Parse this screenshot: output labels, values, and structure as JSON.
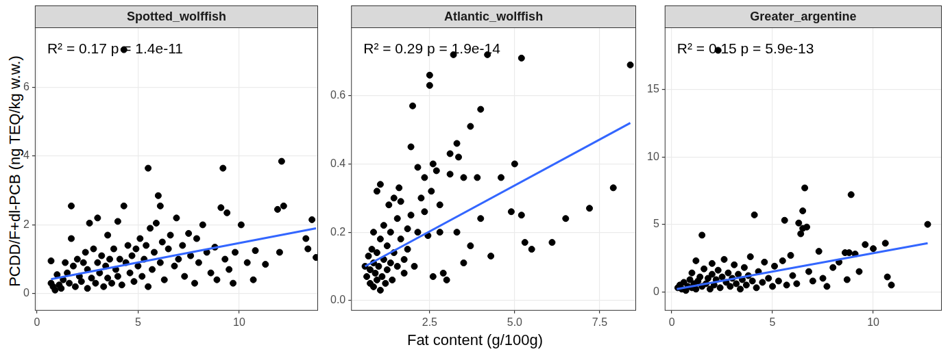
{
  "chart_data": [
    {
      "type": "scatter",
      "title": "Spotted_wolffish",
      "annotation": "R² = 0.17 p = 1.4e-11",
      "ylabel": "PCDD/F+dl-PCB (ng TEQ/kg w.w.)",
      "xlim": [
        -0.1,
        13.9
      ],
      "xticks": [
        0,
        5,
        10
      ],
      "ylim": [
        -0.5,
        7.75
      ],
      "yticks": [
        0,
        2,
        4,
        6
      ],
      "grid": true,
      "series": [
        {
          "type": "scatter",
          "color": "#000000",
          "x": [
            0.7,
            0.7,
            0.8,
            0.9,
            1.0,
            1.1,
            1.2,
            1.3,
            1.4,
            1.5,
            1.6,
            1.7,
            1.7,
            1.8,
            1.9,
            2.0,
            2.1,
            2.2,
            2.3,
            2.4,
            2.5,
            2.5,
            2.6,
            2.7,
            2.8,
            2.9,
            3.0,
            3.0,
            3.1,
            3.2,
            3.3,
            3.4,
            3.5,
            3.5,
            3.6,
            3.7,
            3.8,
            3.9,
            4.0,
            4.0,
            4.1,
            4.2,
            4.3,
            4.3,
            4.4,
            4.5,
            4.6,
            4.7,
            4.8,
            4.9,
            5.0,
            5.1,
            5.2,
            5.3,
            5.4,
            5.5,
            5.5,
            5.6,
            5.7,
            5.8,
            5.9,
            6.0,
            6.1,
            6.1,
            6.2,
            6.3,
            6.5,
            6.6,
            6.8,
            6.9,
            7.0,
            7.2,
            7.3,
            7.5,
            7.6,
            7.8,
            7.9,
            8.0,
            8.2,
            8.4,
            8.6,
            8.8,
            8.9,
            9.1,
            9.2,
            9.3,
            9.4,
            9.5,
            9.7,
            9.8,
            10.1,
            10.4,
            10.7,
            10.8,
            11.3,
            11.9,
            12.0,
            12.1,
            12.2,
            13.3,
            13.4,
            13.6,
            13.8
          ],
          "values": [
            0.95,
            0.3,
            0.2,
            0.1,
            0.55,
            0.25,
            0.15,
            0.4,
            0.9,
            0.6,
            0.3,
            2.55,
            1.6,
            0.8,
            0.2,
            1.0,
            0.5,
            0.35,
            0.9,
            1.2,
            0.15,
            0.7,
            2.05,
            0.45,
            1.3,
            0.3,
            0.9,
            2.2,
            0.6,
            1.1,
            0.2,
            0.8,
            1.7,
            0.45,
            1.0,
            0.3,
            1.3,
            0.7,
            2.1,
            0.5,
            1.0,
            0.25,
            7.1,
            2.55,
            0.9,
            1.4,
            0.6,
            1.1,
            0.35,
            1.3,
            0.8,
            1.6,
            0.5,
            1.0,
            1.4,
            3.65,
            0.2,
            1.9,
            0.7,
            1.2,
            2.05,
            2.85,
            2.55,
            0.9,
            1.5,
            0.4,
            1.3,
            1.7,
            0.8,
            2.2,
            1.0,
            1.4,
            0.5,
            1.75,
            1.1,
            0.3,
            1.6,
            0.9,
            2.0,
            1.2,
            0.6,
            1.35,
            0.4,
            2.5,
            3.65,
            1.0,
            2.35,
            0.7,
            0.3,
            1.2,
            2.0,
            0.9,
            0.4,
            1.25,
            0.85,
            2.45,
            1.2,
            3.85,
            2.55,
            1.6,
            1.3,
            2.15,
            1.05
          ]
        },
        {
          "type": "line",
          "color": "#3366ff",
          "x": [
            0.7,
            13.8
          ],
          "values": [
            0.42,
            1.9
          ]
        }
      ]
    },
    {
      "type": "scatter",
      "title": "Atlantic_wolffish",
      "annotation": "R² = 0.29 p = 1.9e-14",
      "xlabel": "Fat content (g/100g)",
      "xlim": [
        0.19,
        8.57
      ],
      "xticks": [
        2.5,
        {
          "value": 5,
          "label": "5.0"
        },
        7.5
      ],
      "ylim": [
        -0.03,
        0.8
      ],
      "yticks": [
        {
          "value": 0,
          "label": "0.0"
        },
        0.2,
        0.4,
        0.6
      ],
      "grid": true,
      "series": [
        {
          "type": "scatter",
          "color": "#000000",
          "x": [
            0.6,
            0.65,
            0.7,
            0.75,
            0.75,
            0.8,
            0.85,
            0.85,
            0.85,
            0.9,
            0.95,
            0.95,
            0.95,
            1.0,
            1.05,
            1.05,
            1.05,
            1.1,
            1.15,
            1.15,
            1.2,
            1.25,
            1.25,
            1.3,
            1.35,
            1.35,
            1.4,
            1.45,
            1.45,
            1.55,
            1.55,
            1.6,
            1.65,
            1.65,
            1.75,
            1.75,
            1.85,
            1.85,
            1.95,
            1.95,
            2.0,
            2.05,
            2.15,
            2.15,
            2.25,
            2.35,
            2.35,
            2.45,
            2.5,
            2.5,
            2.55,
            2.6,
            2.6,
            2.7,
            2.8,
            2.8,
            2.9,
            3.0,
            3.1,
            3.1,
            3.3,
            3.3,
            3.35,
            3.5,
            3.5,
            3.7,
            3.7,
            3.2,
            3.9,
            4.0,
            4.2,
            4.3,
            4.0,
            4.6,
            4.9,
            5.0,
            5.2,
            5.3,
            5.2,
            5.5,
            6.1,
            6.5,
            7.2,
            7.9,
            8.4
          ],
          "values": [
            0.1,
            0.07,
            0.13,
            0.05,
            0.09,
            0.15,
            0.04,
            0.11,
            0.2,
            0.08,
            0.06,
            0.14,
            0.32,
            0.1,
            0.03,
            0.18,
            0.34,
            0.07,
            0.12,
            0.22,
            0.05,
            0.16,
            0.09,
            0.28,
            0.11,
            0.2,
            0.06,
            0.14,
            0.3,
            0.24,
            0.1,
            0.33,
            0.18,
            0.29,
            0.12,
            0.08,
            0.21,
            0.15,
            0.45,
            0.25,
            0.57,
            0.1,
            0.39,
            0.2,
            0.3,
            0.26,
            0.36,
            0.19,
            0.66,
            0.63,
            0.32,
            0.4,
            0.07,
            0.38,
            0.2,
            0.28,
            0.08,
            0.06,
            0.37,
            0.43,
            0.46,
            0.2,
            0.42,
            0.36,
            0.11,
            0.51,
            0.16,
            0.72,
            0.36,
            0.24,
            0.72,
            0.13,
            0.56,
            0.36,
            0.26,
            0.4,
            0.25,
            0.17,
            0.71,
            0.15,
            0.17,
            0.24,
            0.27,
            0.33,
            0.69
          ]
        },
        {
          "type": "line",
          "color": "#3366ff",
          "x": [
            0.6,
            8.4
          ],
          "values": [
            0.1,
            0.52
          ]
        }
      ]
    },
    {
      "type": "scatter",
      "title": "Greater_argentine",
      "annotation": "R² = 0.15 p = 5.9e-13",
      "xlim": [
        -0.35,
        13.4
      ],
      "xticks": [
        0,
        5,
        10
      ],
      "ylim": [
        -1.4,
        19.6
      ],
      "yticks": [
        0,
        5,
        10,
        15
      ],
      "grid": true,
      "series": [
        {
          "type": "scatter",
          "color": "#000000",
          "x": [
            0.3,
            0.4,
            0.5,
            0.6,
            0.7,
            0.8,
            0.9,
            1.0,
            1.0,
            1.1,
            1.2,
            1.2,
            1.3,
            1.4,
            1.5,
            1.5,
            1.6,
            1.7,
            1.8,
            1.9,
            2.0,
            2.0,
            2.1,
            2.2,
            2.3,
            2.3,
            2.4,
            2.5,
            2.6,
            2.7,
            2.8,
            2.9,
            3.0,
            3.1,
            3.2,
            3.3,
            3.4,
            3.5,
            3.6,
            3.7,
            3.8,
            3.9,
            4.0,
            4.1,
            4.2,
            4.3,
            4.5,
            4.6,
            4.8,
            5.0,
            5.1,
            5.3,
            5.5,
            5.6,
            5.7,
            5.9,
            6.0,
            6.2,
            6.3,
            6.4,
            6.5,
            6.5,
            6.6,
            6.7,
            6.8,
            7.0,
            7.3,
            7.5,
            7.7,
            8.0,
            8.3,
            8.6,
            8.7,
            8.8,
            8.9,
            9.1,
            9.3,
            9.6,
            10.0,
            10.6,
            10.7,
            10.9,
            12.7
          ],
          "values": [
            0.3,
            0.5,
            0.2,
            0.7,
            0.1,
            0.4,
            0.9,
            0.3,
            1.4,
            0.6,
            0.2,
            2.3,
            0.8,
            1.1,
            4.2,
            0.4,
            1.7,
            0.6,
            1.0,
            0.2,
            1.3,
            2.1,
            0.5,
            0.9,
            17.9,
            1.6,
            0.3,
            1.1,
            2.4,
            0.7,
            1.4,
            0.4,
            1.0,
            2.0,
            0.6,
            1.3,
            0.2,
            0.9,
            1.8,
            0.5,
            1.2,
            2.6,
            0.8,
            5.7,
            0.3,
            1.5,
            0.7,
            2.2,
            1.0,
            0.4,
            1.9,
            0.8,
            2.3,
            5.3,
            0.5,
            2.7,
            1.2,
            0.6,
            5.1,
            4.3,
            6.0,
            4.7,
            7.7,
            4.8,
            1.5,
            0.8,
            3.0,
            1.0,
            0.4,
            1.8,
            2.2,
            2.9,
            0.9,
            2.9,
            7.2,
            2.8,
            1.5,
            3.5,
            3.2,
            3.6,
            1.1,
            0.5,
            5.0
          ]
        },
        {
          "type": "line",
          "color": "#3366ff",
          "x": [
            0.25,
            12.7
          ],
          "values": [
            0.2,
            3.6
          ]
        }
      ]
    }
  ]
}
